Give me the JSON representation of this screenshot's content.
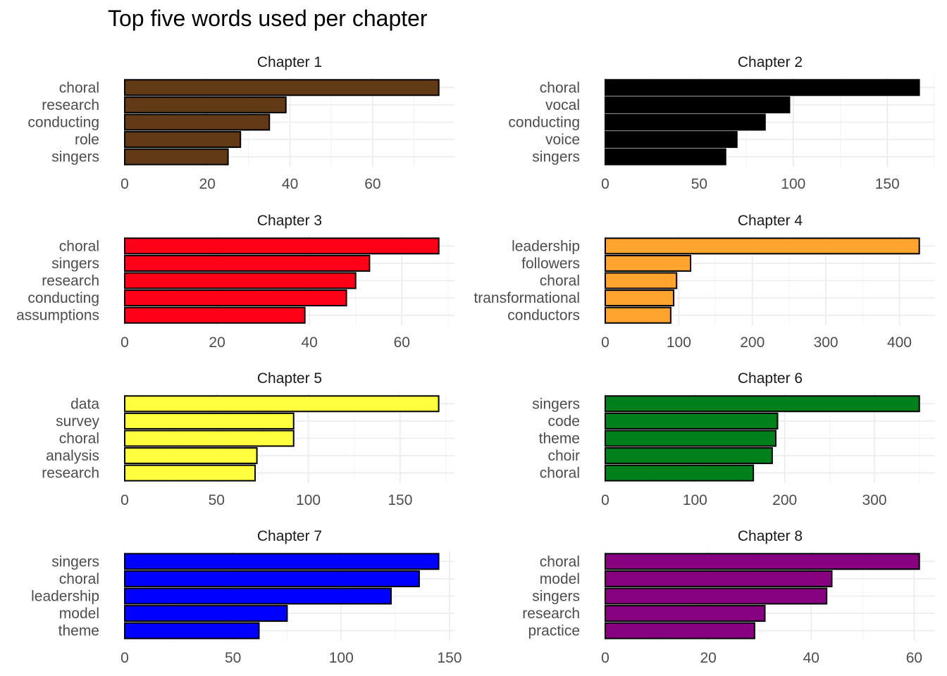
{
  "title": "Top five words used per chapter",
  "chart_data": [
    {
      "type": "bar",
      "orientation": "horizontal",
      "title": "Chapter 1",
      "color": "#633a16",
      "categories": [
        "choral",
        "research",
        "conducting",
        "role",
        "singers"
      ],
      "values": [
        76,
        39,
        35,
        28,
        25
      ],
      "xlim": [
        0,
        79.8
      ],
      "ticks": [
        0,
        20,
        40,
        60
      ],
      "tick_labels": [
        "0",
        "20",
        "40",
        "60"
      ]
    },
    {
      "type": "bar",
      "orientation": "horizontal",
      "title": "Chapter 2",
      "color": "#000000",
      "categories": [
        "choral",
        "vocal",
        "conducting",
        "voice",
        "singers"
      ],
      "values": [
        167,
        98,
        85,
        70,
        64
      ],
      "xlim": [
        0,
        175.4
      ],
      "ticks": [
        0,
        50,
        100,
        150
      ],
      "tick_labels": [
        "0",
        "50",
        "100",
        "150"
      ]
    },
    {
      "type": "bar",
      "orientation": "horizontal",
      "title": "Chapter 3",
      "color": "#ff0019",
      "categories": [
        "choral",
        "singers",
        "research",
        "conducting",
        "assumptions"
      ],
      "values": [
        68,
        53,
        50,
        48,
        39
      ],
      "xlim": [
        0,
        71.4
      ],
      "ticks": [
        0,
        20,
        40,
        60
      ],
      "tick_labels": [
        "0",
        "20",
        "40",
        "60"
      ]
    },
    {
      "type": "bar",
      "orientation": "horizontal",
      "title": "Chapter 4",
      "color": "#ffa42f",
      "categories": [
        "leadership",
        "followers",
        "choral",
        "transformational",
        "conductors"
      ],
      "values": [
        427,
        116,
        97,
        93,
        89
      ],
      "xlim": [
        0,
        448.4
      ],
      "ticks": [
        0,
        100,
        200,
        300,
        400
      ],
      "tick_labels": [
        "0",
        "100",
        "200",
        "300",
        "400"
      ]
    },
    {
      "type": "bar",
      "orientation": "horizontal",
      "title": "Chapter 5",
      "color": "#ffff3f",
      "categories": [
        "data",
        "survey",
        "choral",
        "analysis",
        "research"
      ],
      "values": [
        171,
        92,
        92,
        72,
        71
      ],
      "xlim": [
        0,
        179.6
      ],
      "ticks": [
        0,
        50,
        100,
        150
      ],
      "tick_labels": [
        "0",
        "50",
        "100",
        "150"
      ]
    },
    {
      "type": "bar",
      "orientation": "horizontal",
      "title": "Chapter 6",
      "color": "#00801b",
      "categories": [
        "singers",
        "code",
        "theme",
        "choir",
        "choral"
      ],
      "values": [
        350,
        192,
        190,
        186,
        165
      ],
      "xlim": [
        0,
        367.5
      ],
      "ticks": [
        0,
        100,
        200,
        300
      ],
      "tick_labels": [
        "0",
        "100",
        "200",
        "300"
      ]
    },
    {
      "type": "bar",
      "orientation": "horizontal",
      "title": "Chapter 7",
      "color": "#0000ff",
      "categories": [
        "singers",
        "choral",
        "leadership",
        "model",
        "theme"
      ],
      "values": [
        145,
        136,
        123,
        75,
        62
      ],
      "xlim": [
        0,
        152.3
      ],
      "ticks": [
        0,
        50,
        100,
        150
      ],
      "tick_labels": [
        "0",
        "50",
        "100",
        "150"
      ]
    },
    {
      "type": "bar",
      "orientation": "horizontal",
      "title": "Chapter 8",
      "color": "#870080",
      "categories": [
        "choral",
        "model",
        "singers",
        "research",
        "practice"
      ],
      "values": [
        61,
        44,
        43,
        31,
        29
      ],
      "xlim": [
        0,
        64.05
      ],
      "ticks": [
        0,
        20,
        40,
        60
      ],
      "tick_labels": [
        "0",
        "20",
        "40",
        "60"
      ]
    }
  ]
}
